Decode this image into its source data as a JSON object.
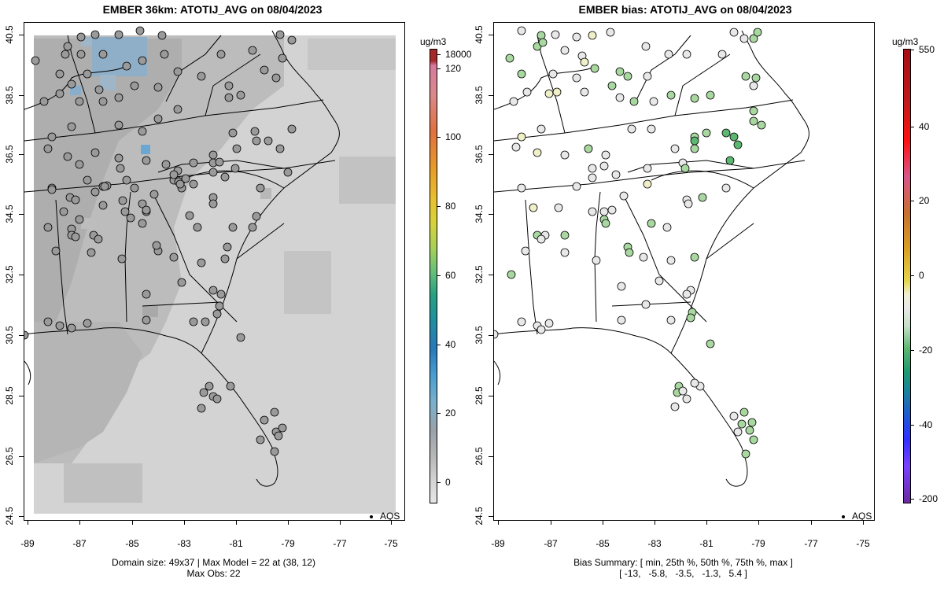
{
  "left_panel": {
    "title": "EMBER 36km: ATOTIJ_AVG on 08/04/2023",
    "unit": "ug/m3",
    "colorbar_labels": [
      "18000",
      "120",
      "100",
      "80",
      "60",
      "40",
      "20",
      "0"
    ],
    "legend": "AQS",
    "footer_line1": "Domain size: 49x37 | Max Model = 22 at (38, 12)",
    "footer_line2": "Max Obs: 22"
  },
  "right_panel": {
    "title": "EMBER bias: ATOTIJ_AVG on 08/04/2023",
    "unit": "ug/m3",
    "colorbar_labels": [
      "550",
      "40",
      "20",
      "0",
      "-20",
      "-40",
      "-200"
    ],
    "legend": "AQS",
    "footer_line1": "Bias Summary: [ min, 25th %, 50th %, 75th %, max ]",
    "footer_line2": "[ -13,   -5.8,   -3.5,   -1.3,   5.4 ]"
  },
  "axes": {
    "x_ticks": [
      "-89",
      "-87",
      "-85",
      "-83",
      "-81",
      "-79",
      "-77",
      "-75"
    ],
    "y_ticks": [
      "40.5",
      "38.5",
      "36.5",
      "34.5",
      "32.5",
      "30.5",
      "28.5",
      "26.5",
      "24.5"
    ]
  },
  "colors": {
    "model_field_light": "#d3d3d3",
    "model_field_mid": "#bdbdbd",
    "model_field_dark": "#a9a9a9",
    "model_high": "#7fa8c9",
    "obs_dot_gray": "#9a9a9a",
    "bias_green": "#a8d8a0",
    "bias_dark_green": "#5cb870",
    "bias_neutral": "#e8e8e8",
    "bias_yellow": "#efefc8"
  }
}
